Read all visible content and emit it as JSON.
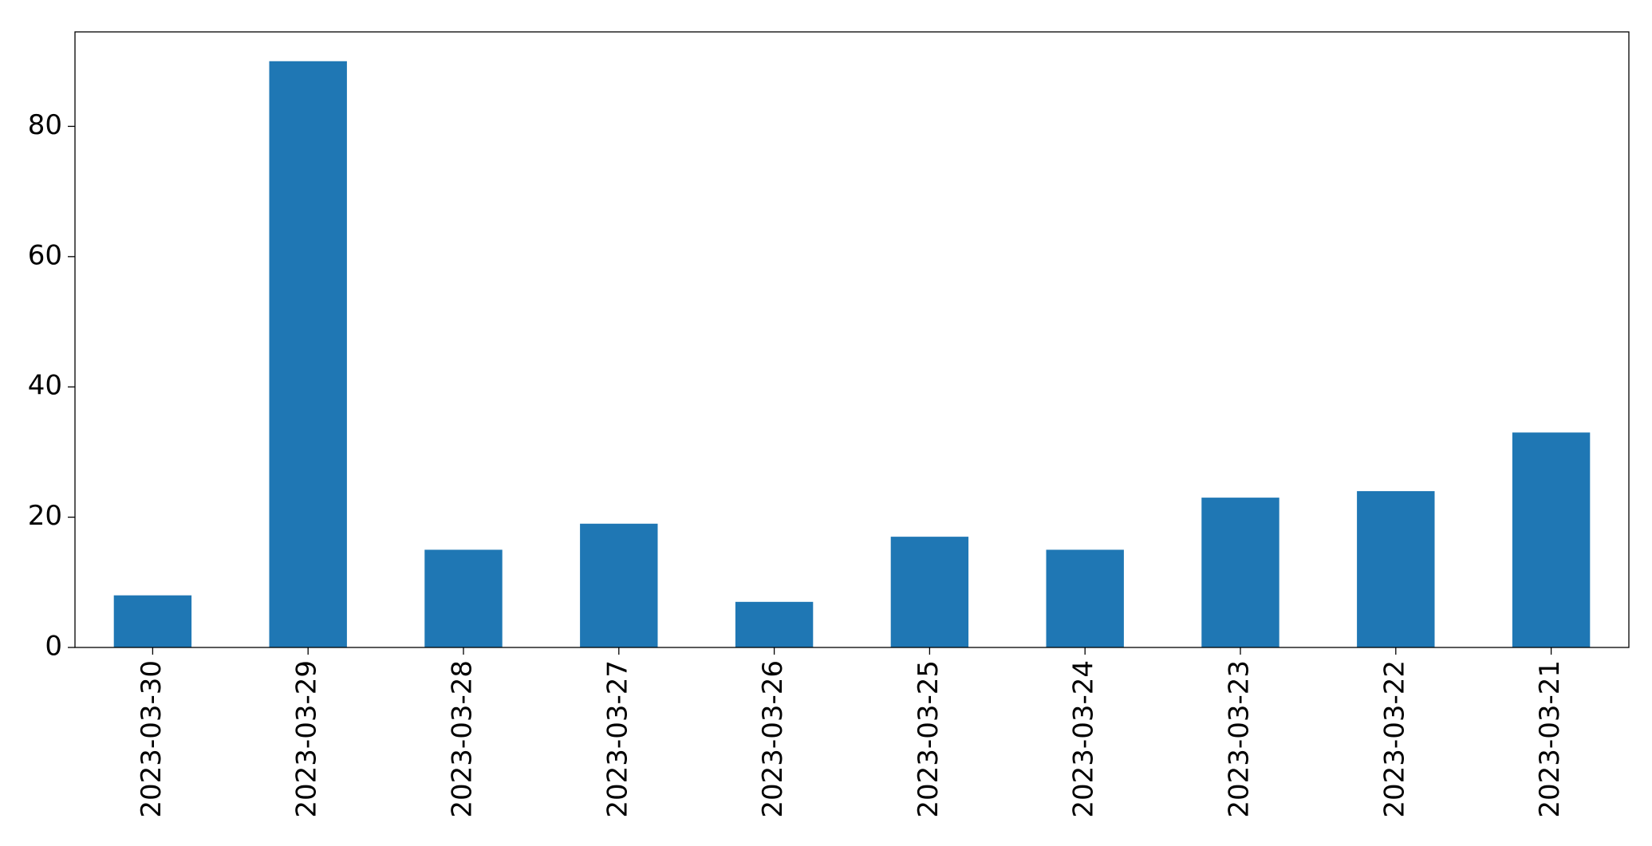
{
  "chart_data": {
    "type": "bar",
    "categories": [
      "2023-03-30",
      "2023-03-29",
      "2023-03-28",
      "2023-03-27",
      "2023-03-26",
      "2023-03-25",
      "2023-03-24",
      "2023-03-23",
      "2023-03-22",
      "2023-03-21"
    ],
    "values": [
      8,
      90,
      15,
      19,
      7,
      17,
      15,
      23,
      24,
      33
    ],
    "color": "#1f77b4",
    "ylim": [
      0,
      94.5
    ],
    "yticks": [
      0,
      20,
      40,
      60,
      80
    ],
    "grid": false
  }
}
